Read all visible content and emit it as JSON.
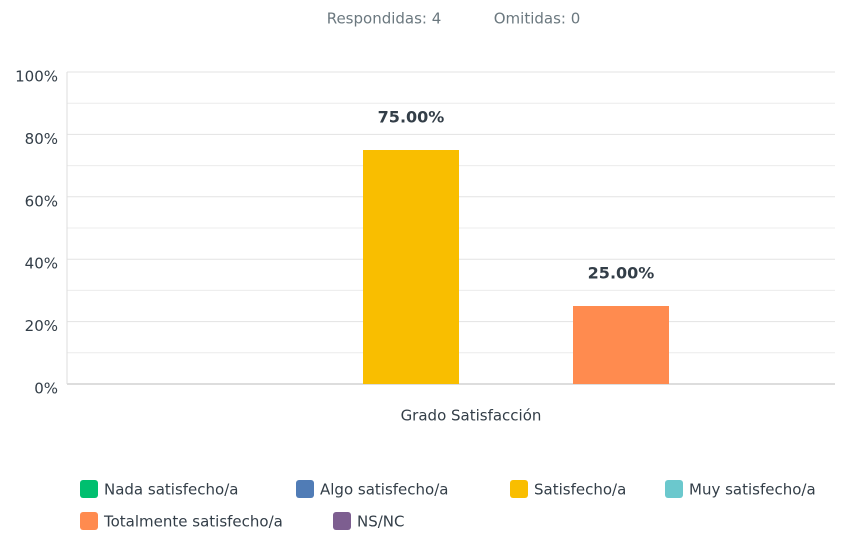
{
  "chart_data": {
    "type": "bar",
    "stats": [
      "Respondidas: 4",
      "Omitidas: 0"
    ],
    "categories": [
      "Grado Satisfacción"
    ],
    "series": [
      {
        "name": "Nada satisfecho/a",
        "color": "#00bf6f",
        "values": [
          0
        ]
      },
      {
        "name": "Algo satisfecho/a",
        "color": "#507cb6",
        "values": [
          0
        ]
      },
      {
        "name": "Satisfecho/a",
        "color": "#f9be00",
        "values": [
          75
        ],
        "value_labels": [
          "75.00%"
        ]
      },
      {
        "name": "Muy satisfecho/a",
        "color": "#6bc8cd",
        "values": [
          0
        ]
      },
      {
        "name": "Totalmente satisfecho/a",
        "color": "#ff8b4f",
        "values": [
          25
        ],
        "value_labels": [
          "25.00%"
        ]
      },
      {
        "name": "NS/NC",
        "color": "#7d5e90",
        "values": [
          0
        ]
      }
    ],
    "ylim": [
      0,
      100
    ],
    "yticks": [
      {
        "value": 0,
        "label": "0%"
      },
      {
        "value": 20,
        "label": "20%"
      },
      {
        "value": 40,
        "label": "40%"
      },
      {
        "value": 60,
        "label": "60%"
      },
      {
        "value": 80,
        "label": "80%"
      },
      {
        "value": 100,
        "label": "100%"
      }
    ],
    "minor_yticks": [
      10,
      30,
      50,
      70,
      90
    ],
    "grid": true
  }
}
